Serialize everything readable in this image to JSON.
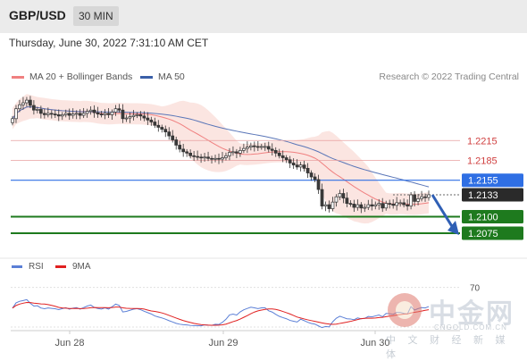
{
  "header": {
    "pair": "GBP/USD",
    "timeframe": "30 MIN"
  },
  "date": "Thursday, June 30, 2022 7:31:10 AM CET",
  "legend": {
    "ma20": "MA 20 + Bollinger Bands",
    "ma50": "MA 50",
    "ma20_color": "#f08080",
    "ma50_color": "#3a5fa8"
  },
  "copyright": "Research © 2022 Trading Central",
  "rsi_legend": {
    "rsi": "RSI",
    "ma": "9MA",
    "rsi_color": "#5b7fd6",
    "ma_color": "#e02020"
  },
  "watermark": {
    "cn": "中金网",
    "url": "CNGOLD.COM.CN",
    "sub": "中 文 财 经 新 媒 体"
  },
  "chart_data": {
    "type": "candlestick",
    "price_axis": {
      "ylim": [
        1.2052,
        1.2295
      ]
    },
    "x_labels": [
      "Jun 28",
      "Jun 29",
      "Jun 30"
    ],
    "levels": [
      {
        "value": 1.2215,
        "label": "1.2215",
        "kind": "resistance",
        "color": "#e8a0a0"
      },
      {
        "value": 1.2185,
        "label": "1.2185",
        "kind": "resistance",
        "color": "#e8a0a0"
      },
      {
        "value": 1.2155,
        "label": "1.2155",
        "kind": "pivot",
        "color": "#2f6fe4"
      },
      {
        "value": 1.2133,
        "label": "1.2133",
        "kind": "last_price",
        "color": "#2a2a2a"
      },
      {
        "value": 1.21,
        "label": "1.2100",
        "kind": "support",
        "color": "#1e7a1e"
      },
      {
        "value": 1.2075,
        "label": "1.2075",
        "kind": "support",
        "color": "#1e7a1e"
      }
    ],
    "closes": [
      1.2248,
      1.2263,
      1.2269,
      1.2272,
      1.2276,
      1.2268,
      1.2261,
      1.2262,
      1.2256,
      1.2254,
      1.2256,
      1.2255,
      1.2254,
      1.2252,
      1.2254,
      1.2256,
      1.2253,
      1.2255,
      1.2256,
      1.2253,
      1.2256,
      1.2259,
      1.2261,
      1.2257,
      1.2255,
      1.2254,
      1.2256,
      1.2254,
      1.2258,
      1.2263,
      1.2261,
      1.2248,
      1.2249,
      1.2251,
      1.2253,
      1.2254,
      1.2252,
      1.2249,
      1.2246,
      1.2243,
      1.2238,
      1.2235,
      1.2232,
      1.2228,
      1.2222,
      1.2216,
      1.2208,
      1.2202,
      1.2198,
      1.2196,
      1.2192,
      1.2191,
      1.219,
      1.2189,
      1.219,
      1.2188,
      1.2187,
      1.2188,
      1.2187,
      1.2189,
      1.2192,
      1.2197,
      1.2198,
      1.2196,
      1.22,
      1.2203,
      1.2205,
      1.2207,
      1.2206,
      1.2205,
      1.2206,
      1.2206,
      1.2202,
      1.22,
      1.2196,
      1.2192,
      1.2189,
      1.2186,
      1.2181,
      1.2178,
      1.2175,
      1.2178,
      1.2173,
      1.2166,
      1.216,
      1.2156,
      1.2141,
      1.2116,
      1.2118,
      1.2112,
      1.2122,
      1.213,
      1.2135,
      1.2128,
      1.212,
      1.2119,
      1.2114,
      1.2118,
      1.2113,
      1.2114,
      1.2118,
      1.2116,
      1.2118,
      1.212,
      1.2113,
      1.212,
      1.2119,
      1.2117,
      1.2121,
      1.2121,
      1.2118,
      1.2116,
      1.2133,
      1.2123,
      1.2127,
      1.213,
      1.2129,
      1.2133
    ],
    "rsi": {
      "ylim": [
        30,
        80
      ],
      "label": "70"
    }
  }
}
